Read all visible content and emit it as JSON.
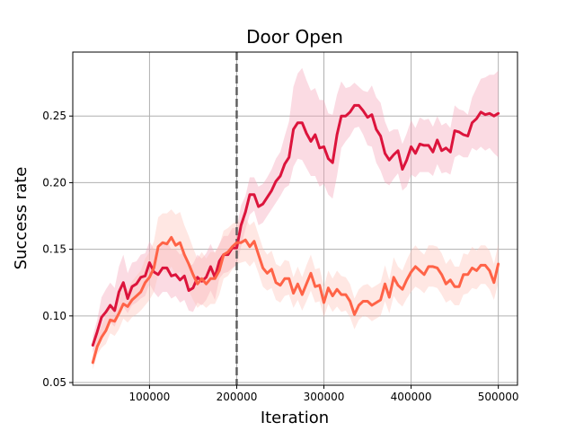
{
  "chart_data": {
    "type": "line",
    "title": "Door Open",
    "xlabel": "Iteration",
    "ylabel": "Success rate",
    "xlim": [
      12000,
      522000
    ],
    "ylim": [
      0.048,
      0.298
    ],
    "xticks": [
      100000,
      200000,
      300000,
      400000,
      500000
    ],
    "xtick_labels": [
      "100000",
      "200000",
      "300000",
      "400000",
      "500000"
    ],
    "yticks": [
      0.05,
      0.1,
      0.15,
      0.2,
      0.25
    ],
    "ytick_labels": [
      "0.05",
      "0.10",
      "0.15",
      "0.20",
      "0.25"
    ],
    "grid": true,
    "vline_x": 200000,
    "series": [
      {
        "color": "#dc143c",
        "band_color": "#f4a6b8",
        "x": [
          35000,
          40000,
          45000,
          50000,
          55000,
          60000,
          65000,
          70000,
          75000,
          80000,
          85000,
          90000,
          95000,
          100000,
          105000,
          110000,
          115000,
          120000,
          125000,
          130000,
          135000,
          140000,
          145000,
          150000,
          155000,
          160000,
          165000,
          170000,
          175000,
          180000,
          185000,
          190000,
          195000,
          200000,
          205000,
          210000,
          215000,
          220000,
          225000,
          230000,
          235000,
          240000,
          245000,
          250000,
          255000,
          260000,
          265000,
          270000,
          275000,
          280000,
          285000,
          290000,
          295000,
          300000,
          305000,
          310000,
          315000,
          320000,
          325000,
          330000,
          335000,
          340000,
          345000,
          350000,
          355000,
          360000,
          365000,
          370000,
          375000,
          380000,
          385000,
          390000,
          395000,
          400000,
          405000,
          410000,
          415000,
          420000,
          425000,
          430000,
          435000,
          440000,
          445000,
          450000,
          455000,
          460000,
          465000,
          470000,
          475000,
          480000,
          485000,
          490000,
          495000,
          500000
        ],
        "y": [
          0.078,
          0.088,
          0.099,
          0.103,
          0.108,
          0.104,
          0.118,
          0.125,
          0.113,
          0.122,
          0.124,
          0.129,
          0.13,
          0.14,
          0.133,
          0.131,
          0.136,
          0.136,
          0.13,
          0.131,
          0.127,
          0.13,
          0.119,
          0.121,
          0.129,
          0.126,
          0.129,
          0.137,
          0.129,
          0.141,
          0.146,
          0.146,
          0.151,
          0.151,
          0.168,
          0.178,
          0.191,
          0.191,
          0.182,
          0.184,
          0.189,
          0.194,
          0.201,
          0.205,
          0.214,
          0.219,
          0.24,
          0.245,
          0.245,
          0.237,
          0.231,
          0.236,
          0.226,
          0.227,
          0.218,
          0.215,
          0.236,
          0.25,
          0.25,
          0.253,
          0.258,
          0.258,
          0.254,
          0.249,
          0.251,
          0.24,
          0.235,
          0.222,
          0.217,
          0.221,
          0.224,
          0.21,
          0.217,
          0.227,
          0.222,
          0.229,
          0.228,
          0.228,
          0.223,
          0.232,
          0.224,
          0.226,
          0.223,
          0.239,
          0.238,
          0.236,
          0.235,
          0.245,
          0.248,
          0.253,
          0.251,
          0.252,
          0.25,
          0.252
        ],
        "lower": [
          0.072,
          0.08,
          0.086,
          0.088,
          0.095,
          0.092,
          0.1,
          0.107,
          0.102,
          0.108,
          0.11,
          0.113,
          0.115,
          0.124,
          0.118,
          0.114,
          0.118,
          0.118,
          0.113,
          0.115,
          0.11,
          0.112,
          0.104,
          0.103,
          0.11,
          0.108,
          0.112,
          0.119,
          0.112,
          0.128,
          0.132,
          0.133,
          0.136,
          0.138,
          0.152,
          0.165,
          0.176,
          0.179,
          0.168,
          0.17,
          0.175,
          0.18,
          0.185,
          0.19,
          0.196,
          0.198,
          0.212,
          0.218,
          0.217,
          0.211,
          0.205,
          0.205,
          0.197,
          0.199,
          0.191,
          0.188,
          0.205,
          0.226,
          0.231,
          0.235,
          0.241,
          0.242,
          0.236,
          0.228,
          0.227,
          0.215,
          0.209,
          0.2,
          0.198,
          0.203,
          0.207,
          0.194,
          0.197,
          0.206,
          0.204,
          0.208,
          0.208,
          0.208,
          0.205,
          0.214,
          0.207,
          0.208,
          0.206,
          0.219,
          0.221,
          0.219,
          0.219,
          0.226,
          0.224,
          0.227,
          0.224,
          0.226,
          0.222,
          0.219
        ],
        "upper": [
          0.085,
          0.097,
          0.114,
          0.12,
          0.125,
          0.121,
          0.137,
          0.146,
          0.132,
          0.14,
          0.141,
          0.146,
          0.147,
          0.156,
          0.15,
          0.149,
          0.154,
          0.156,
          0.15,
          0.15,
          0.146,
          0.149,
          0.137,
          0.139,
          0.146,
          0.143,
          0.147,
          0.154,
          0.147,
          0.154,
          0.16,
          0.16,
          0.166,
          0.166,
          0.183,
          0.19,
          0.204,
          0.204,
          0.197,
          0.199,
          0.204,
          0.21,
          0.218,
          0.223,
          0.235,
          0.246,
          0.272,
          0.282,
          0.286,
          0.277,
          0.269,
          0.271,
          0.262,
          0.262,
          0.252,
          0.251,
          0.266,
          0.276,
          0.271,
          0.272,
          0.275,
          0.272,
          0.269,
          0.268,
          0.273,
          0.264,
          0.26,
          0.246,
          0.238,
          0.24,
          0.24,
          0.229,
          0.237,
          0.247,
          0.241,
          0.249,
          0.247,
          0.248,
          0.242,
          0.25,
          0.243,
          0.245,
          0.241,
          0.258,
          0.255,
          0.254,
          0.251,
          0.264,
          0.271,
          0.278,
          0.279,
          0.281,
          0.281,
          0.284
        ]
      },
      {
        "color": "#ff6347",
        "band_color": "#ffc4b8",
        "x": [
          35000,
          40000,
          45000,
          50000,
          55000,
          60000,
          65000,
          70000,
          75000,
          80000,
          85000,
          90000,
          95000,
          100000,
          105000,
          110000,
          115000,
          120000,
          125000,
          130000,
          135000,
          140000,
          145000,
          150000,
          155000,
          160000,
          165000,
          170000,
          175000,
          180000,
          185000,
          190000,
          195000,
          200000,
          205000,
          210000,
          215000,
          220000,
          225000,
          230000,
          235000,
          240000,
          245000,
          250000,
          255000,
          260000,
          265000,
          270000,
          275000,
          280000,
          285000,
          290000,
          295000,
          300000,
          305000,
          310000,
          315000,
          320000,
          325000,
          330000,
          335000,
          340000,
          345000,
          350000,
          355000,
          360000,
          365000,
          370000,
          375000,
          380000,
          385000,
          390000,
          395000,
          400000,
          405000,
          410000,
          415000,
          420000,
          425000,
          430000,
          435000,
          440000,
          445000,
          450000,
          455000,
          460000,
          465000,
          470000,
          475000,
          480000,
          485000,
          490000,
          495000,
          500000
        ],
        "y": [
          0.065,
          0.077,
          0.084,
          0.089,
          0.097,
          0.096,
          0.102,
          0.109,
          0.107,
          0.112,
          0.115,
          0.118,
          0.125,
          0.129,
          0.136,
          0.152,
          0.155,
          0.154,
          0.159,
          0.153,
          0.155,
          0.146,
          0.139,
          0.131,
          0.124,
          0.128,
          0.124,
          0.128,
          0.128,
          0.134,
          0.146,
          0.148,
          0.152,
          0.155,
          0.155,
          0.157,
          0.152,
          0.156,
          0.146,
          0.136,
          0.132,
          0.135,
          0.125,
          0.123,
          0.128,
          0.128,
          0.117,
          0.124,
          0.116,
          0.124,
          0.132,
          0.122,
          0.123,
          0.11,
          0.121,
          0.115,
          0.12,
          0.116,
          0.116,
          0.111,
          0.101,
          0.108,
          0.111,
          0.111,
          0.108,
          0.11,
          0.112,
          0.124,
          0.114,
          0.129,
          0.123,
          0.12,
          0.127,
          0.133,
          0.137,
          0.134,
          0.131,
          0.137,
          0.137,
          0.136,
          0.131,
          0.124,
          0.127,
          0.122,
          0.122,
          0.131,
          0.131,
          0.136,
          0.134,
          0.138,
          0.138,
          0.134,
          0.125,
          0.139
        ],
        "lower": [
          0.06,
          0.071,
          0.076,
          0.079,
          0.087,
          0.085,
          0.09,
          0.098,
          0.095,
          0.099,
          0.101,
          0.104,
          0.108,
          0.112,
          0.118,
          0.131,
          0.134,
          0.132,
          0.137,
          0.131,
          0.133,
          0.125,
          0.119,
          0.112,
          0.106,
          0.109,
          0.106,
          0.109,
          0.109,
          0.116,
          0.128,
          0.13,
          0.135,
          0.139,
          0.14,
          0.141,
          0.137,
          0.141,
          0.132,
          0.122,
          0.119,
          0.121,
          0.112,
          0.11,
          0.115,
          0.116,
          0.106,
          0.112,
          0.104,
          0.111,
          0.119,
          0.11,
          0.111,
          0.099,
          0.109,
          0.103,
          0.107,
          0.103,
          0.104,
          0.099,
          0.09,
          0.097,
          0.1,
          0.099,
          0.096,
          0.098,
          0.1,
          0.111,
          0.102,
          0.115,
          0.11,
          0.107,
          0.113,
          0.118,
          0.122,
          0.12,
          0.117,
          0.122,
          0.122,
          0.121,
          0.116,
          0.11,
          0.112,
          0.108,
          0.108,
          0.116,
          0.117,
          0.121,
          0.12,
          0.124,
          0.124,
          0.12,
          0.112,
          0.125
        ],
        "upper": [
          0.071,
          0.084,
          0.093,
          0.1,
          0.108,
          0.107,
          0.115,
          0.121,
          0.12,
          0.126,
          0.13,
          0.134,
          0.143,
          0.148,
          0.156,
          0.174,
          0.177,
          0.177,
          0.18,
          0.176,
          0.178,
          0.168,
          0.16,
          0.151,
          0.143,
          0.148,
          0.143,
          0.148,
          0.148,
          0.153,
          0.164,
          0.166,
          0.169,
          0.171,
          0.17,
          0.173,
          0.168,
          0.171,
          0.161,
          0.151,
          0.146,
          0.149,
          0.139,
          0.137,
          0.142,
          0.141,
          0.129,
          0.137,
          0.129,
          0.138,
          0.146,
          0.135,
          0.136,
          0.122,
          0.134,
          0.128,
          0.134,
          0.13,
          0.129,
          0.124,
          0.113,
          0.12,
          0.123,
          0.124,
          0.121,
          0.123,
          0.125,
          0.138,
          0.127,
          0.144,
          0.137,
          0.134,
          0.142,
          0.149,
          0.153,
          0.149,
          0.146,
          0.153,
          0.153,
          0.152,
          0.147,
          0.139,
          0.143,
          0.137,
          0.137,
          0.147,
          0.146,
          0.152,
          0.149,
          0.153,
          0.153,
          0.149,
          0.139,
          0.154
        ]
      }
    ]
  }
}
